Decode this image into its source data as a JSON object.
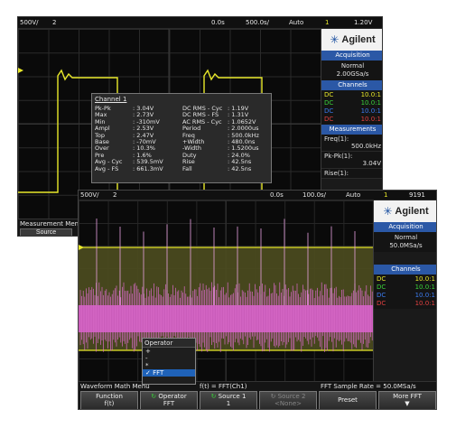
{
  "scope1": {
    "top_bar": {
      "ch1_scale": "500V/",
      "ch2": "2",
      "time_pos": "0.0s",
      "time_scale": "500.0s/",
      "trigger_mode": "Auto",
      "trig_ch": "1",
      "trig_level": "1.20V"
    },
    "brand": "Agilent",
    "acquisition": {
      "header": "Acquisition",
      "mode": "Normal",
      "rate": "2.00GSa/s"
    },
    "channels": {
      "header": "Channels",
      "rows": [
        {
          "label": "DC",
          "value": "10.0:1",
          "color": "#e8e82a"
        },
        {
          "label": "DC",
          "value": "10.0:1",
          "color": "#3ad23a"
        },
        {
          "label": "DC",
          "value": "10.0:1",
          "color": "#3c7cf0"
        },
        {
          "label": "DC",
          "value": "10.0:1",
          "color": "#e04040"
        }
      ]
    },
    "measurements": {
      "header": "Measurements",
      "items": [
        {
          "name": "Freq(1):",
          "value": "500.0kHz"
        },
        {
          "name": "Pk-Pk(1):",
          "value": "3.04V"
        },
        {
          "name": "Rise(1):",
          "value": ""
        }
      ]
    },
    "menu_title": "Measurement Menu",
    "source_button": "Source",
    "popup": {
      "title": "Channel 1",
      "col1": [
        {
          "k": "Pk-Pk",
          "v": ": 3.04V"
        },
        {
          "k": "Max",
          "v": ": 2.73V"
        },
        {
          "k": "Min",
          "v": ": -310mV"
        },
        {
          "k": "Ampl",
          "v": ": 2.53V"
        },
        {
          "k": "Top",
          "v": ": 2.47V"
        },
        {
          "k": "Base",
          "v": ": -70mV"
        },
        {
          "k": "Over",
          "v": ": 10.3%"
        },
        {
          "k": "Pre",
          "v": ": 1.6%"
        },
        {
          "k": "Avg - Cyc",
          "v": ": 539.5mV"
        },
        {
          "k": "Avg - FS",
          "v": ": 661.3mV"
        }
      ],
      "col2": [
        {
          "k": "DC RMS - Cyc",
          "v": ": 1.19V"
        },
        {
          "k": "DC RMS - FS",
          "v": ": 1.31V"
        },
        {
          "k": "AC RMS - Cyc",
          "v": ": 1.0652V"
        },
        {
          "k": "Period",
          "v": ": 2.0000us"
        },
        {
          "k": "Freq",
          "v": ": 500.0kHz"
        },
        {
          "k": "+Width",
          "v": ": 480.0ns"
        },
        {
          "k": "-Width",
          "v": ": 1.5200us"
        },
        {
          "k": "Duty",
          "v": ": 24.0%"
        },
        {
          "k": "Rise",
          "v": ": 42.5ns"
        },
        {
          "k": "Fall",
          "v": ": 42.5ns"
        }
      ]
    }
  },
  "scope2": {
    "top_bar": {
      "ch1_scale": "500V/",
      "ch2": "2",
      "time_pos": "0.0s",
      "time_scale": "100.0s/",
      "trigger_mode": "Auto",
      "trig_ch": "1",
      "trig_level": "9191"
    },
    "brand": "Agilent",
    "acquisition": {
      "header": "Acquisition",
      "mode": "Normal",
      "rate": "50.0MSa/s"
    },
    "channels": {
      "header": "Channels",
      "rows": [
        {
          "label": "DC",
          "value": "10.0:1",
          "color": "#e8e82a"
        },
        {
          "label": "DC",
          "value": "10.0:1",
          "color": "#3ad23a"
        },
        {
          "label": "DC",
          "value": "10.0:1",
          "color": "#3c7cf0"
        },
        {
          "label": "DC",
          "value": "10.0:1",
          "color": "#e04040"
        }
      ]
    },
    "status": {
      "menu": "Waveform Math Menu",
      "function": "f(t) = FFT(Ch1)",
      "sample_rate": "FFT Sample Rate = 50.0MSa/s"
    },
    "softkeys": [
      {
        "label": "Function",
        "value": "f(t)"
      },
      {
        "label": "Operator",
        "value": "FFT"
      },
      {
        "label": "Source 1",
        "value": "1"
      },
      {
        "label": "Source 2",
        "value": "<None>"
      },
      {
        "label": "Preset",
        "value": ""
      },
      {
        "label": "More FFT",
        "value": ""
      }
    ],
    "operator_menu": {
      "title": "Operator",
      "items": [
        "+",
        "-",
        "*",
        "FFT"
      ],
      "selected": "FFT"
    }
  }
}
